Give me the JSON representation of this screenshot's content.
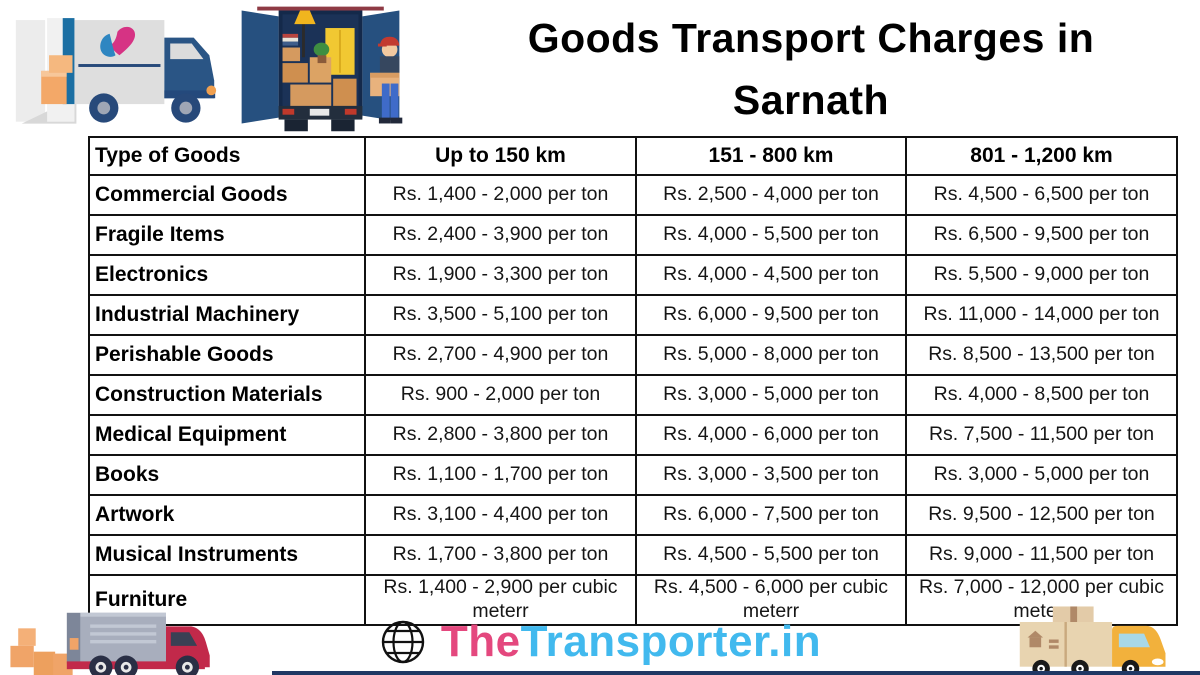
{
  "title": {
    "line1": "Goods Transport Charges in",
    "line2": "Sarnath"
  },
  "table": {
    "headers": [
      "Type of Goods",
      "Up to 150 km",
      "151 - 800 km",
      "801 - 1,200 km"
    ],
    "rows": [
      [
        "Commercial Goods",
        "Rs. 1,400 - 2,000 per ton",
        "Rs. 2,500 - 4,000 per ton",
        "Rs. 4,500 - 6,500 per ton"
      ],
      [
        "Fragile Items",
        "Rs. 2,400 - 3,900 per ton",
        "Rs. 4,000 - 5,500 per ton",
        "Rs. 6,500 - 9,500 per ton"
      ],
      [
        "Electronics",
        "Rs. 1,900 - 3,300 per ton",
        "Rs. 4,000 - 4,500 per ton",
        "Rs. 5,500 - 9,000 per ton"
      ],
      [
        "Industrial Machinery",
        "Rs. 3,500 - 5,100 per ton",
        "Rs. 6,000 - 9,500 per ton",
        "Rs. 11,000 - 14,000 per ton"
      ],
      [
        "Perishable Goods",
        "Rs. 2,700 - 4,900 per ton",
        "Rs. 5,000 - 8,000 per ton",
        "Rs. 8,500 - 13,500 per ton"
      ],
      [
        "Construction Materials",
        "Rs. 900 - 2,000 per ton",
        "Rs. 3,000 - 5,000 per ton",
        "Rs. 4,000 - 8,500 per ton"
      ],
      [
        "Medical Equipment",
        "Rs. 2,800 - 3,800 per ton",
        "Rs. 4,000 - 6,000 per ton",
        "Rs. 7,500 - 11,500 per ton"
      ],
      [
        "Books",
        "Rs. 1,100 - 1,700 per ton",
        "Rs. 3,000 - 3,500 per ton",
        "Rs. 3,000 - 5,000 per ton"
      ],
      [
        "Artwork",
        "Rs. 3,100 - 4,400 per ton",
        "Rs. 6,000 - 7,500 per ton",
        "Rs. 9,500 - 12,500 per ton"
      ],
      [
        "Musical Instruments",
        "Rs. 1,700 - 3,800 per ton",
        "Rs. 4,500 - 5,500 per ton",
        "Rs. 9,000 - 11,500 per ton"
      ],
      [
        "Furniture",
        "Rs. 1,400 - 2,900 per cubic meterr",
        "Rs. 4,500 - 6,000 per cubic meterr",
        "Rs. 7,000 - 12,000 per cubic meterr"
      ]
    ]
  },
  "footer": {
    "brand_prefix": "The",
    "brand_suffix": "Transporter.in"
  },
  "colors": {
    "brand_pink": "#E4487E",
    "brand_blue": "#41B9EE",
    "table_border": "#111111",
    "bottom_line_navy": "#203864"
  },
  "icons": {
    "globe": "globe-icon",
    "decorations": [
      "moving-truck-side-illustration",
      "loading-truck-rear-illustration",
      "red-cargo-truck-illustration",
      "yellow-delivery-truck-illustration"
    ]
  }
}
